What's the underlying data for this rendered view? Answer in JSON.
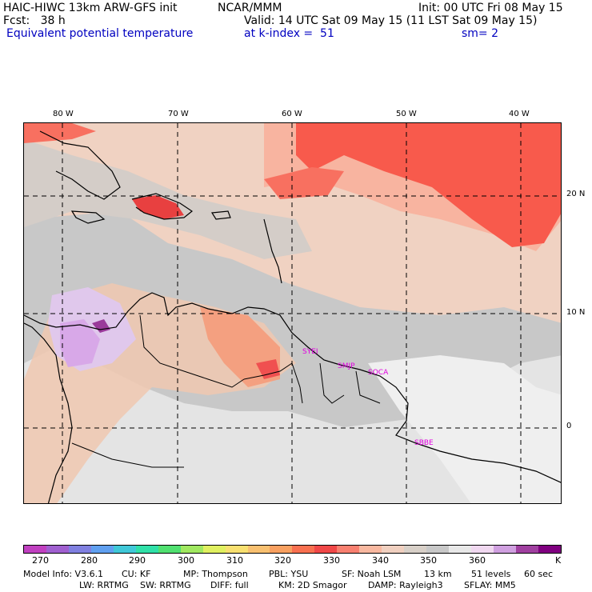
{
  "header": {
    "line1_left": "HAIC-HIWC 13km ARW-GFS init",
    "line1_mid": "NCAR/MMM",
    "line1_right": "Init: 00 UTC Fri 08 May 15",
    "line2_left": "Fcst:   38 h",
    "line2_right": "Valid: 14 UTC Sat 09 May 15 (11 LST Sat 09 May 15)",
    "line3_left": "Equivalent potential temperature",
    "line3_mid": "at k-index =  51",
    "line3_right": "sm= 2"
  },
  "map": {
    "lon_labels": [
      "80 W",
      "70 W",
      "60 W",
      "50 W",
      "40 W"
    ],
    "lat_labels": [
      "20 N",
      "10 N",
      "0"
    ],
    "station_labels": [
      "SYEI",
      "SMJP",
      "SOCA",
      "SBBE"
    ]
  },
  "colorbar": {
    "colors": [
      "#c040c0",
      "#a060d0",
      "#8080e0",
      "#60a0f0",
      "#40c8d8",
      "#30e0a8",
      "#50e070",
      "#a0e860",
      "#e0f060",
      "#f8e070",
      "#f8c070",
      "#f8a060",
      "#f87050",
      "#f04848",
      "#f88070",
      "#f8b8a0",
      "#f0d0c0",
      "#d8d0c8",
      "#c8c8c8",
      "#e8e8e8",
      "#f0d8f0",
      "#d0a0e0",
      "#a040a0",
      "#800080"
    ],
    "labels": [
      "270",
      "280",
      "290",
      "300",
      "310",
      "320",
      "330",
      "340",
      "350",
      "360",
      "K"
    ]
  },
  "model_info": {
    "line1": [
      "Model Info: V3.6.1",
      "CU: KF",
      "MP: Thompson",
      "PBL: YSU",
      "SF: Noah LSM",
      "13 km",
      "51 levels",
      "60 sec"
    ],
    "line2": [
      "LW: RRTMG",
      "SW: RRTMG",
      "DIFF: full",
      "KM: 2D Smagor",
      "DAMP: Rayleigh3",
      "SFLAY: MM5"
    ]
  }
}
